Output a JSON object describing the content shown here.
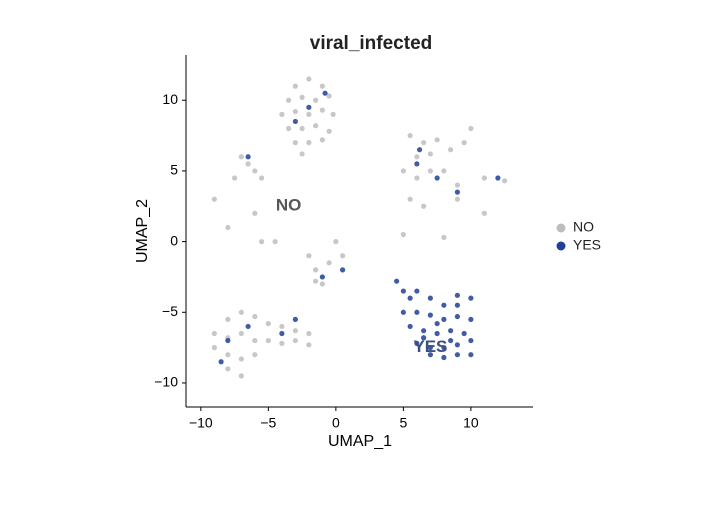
{
  "chart_data": {
    "type": "scatter",
    "title": "viral_infected",
    "x_label": "UMAP_1",
    "y_label": "UMAP_2",
    "xlim": [
      -11.1,
      14.6
    ],
    "ylim": [
      -11.7,
      13.2
    ],
    "xticks": [
      {
        "value": -10,
        "label": "−10"
      },
      {
        "value": -5,
        "label": "−5"
      },
      0,
      5,
      10
    ],
    "yticks": [
      {
        "value": -10,
        "label": "−10"
      },
      {
        "value": -5,
        "label": "−5"
      },
      0,
      5,
      10
    ],
    "legend": "right",
    "series": [
      {
        "name": "NO",
        "color": "#bdbdbd",
        "x": [
          -3,
          -2,
          -1,
          -3.5,
          -2.5,
          -1.5,
          -0.5,
          -4,
          -3,
          -2,
          -1,
          -0.2,
          -3.5,
          -2.5,
          -1.5,
          -0.5,
          -3,
          -2,
          -1,
          -2.5,
          -7,
          -6.5,
          -6,
          -5.5,
          -7.5,
          5.5,
          6.5,
          7.5,
          6,
          7,
          8.5,
          9.5,
          10,
          5,
          6,
          7,
          8,
          9,
          11,
          12.5,
          5.5,
          6.5,
          -8,
          -7,
          -6,
          -5,
          -4,
          -3,
          -2,
          -9,
          -8,
          -7,
          -6,
          -5,
          -4,
          -3,
          -2,
          -9,
          -8,
          -7,
          -6,
          -8,
          -7,
          -8,
          -5.5,
          -4.5,
          -2,
          -1.5,
          -1,
          0,
          0.5,
          -9,
          -6,
          8,
          9,
          11,
          5,
          -1.5,
          -0.5
        ],
        "y": [
          11,
          11.5,
          11,
          10,
          10.2,
          10,
          10.3,
          9,
          9.2,
          9,
          9.3,
          9,
          8,
          8,
          8.2,
          7.8,
          7,
          7,
          7.2,
          6.2,
          6,
          5.5,
          5,
          4.5,
          4.5,
          7.5,
          7,
          7.2,
          6,
          6.2,
          6.5,
          7,
          8,
          5,
          4.5,
          5,
          5,
          4,
          4.5,
          4.3,
          3,
          2.5,
          -5.5,
          -5,
          -5.3,
          -5.8,
          -6,
          -6.3,
          -6.5,
          -6.5,
          -6.8,
          -6.5,
          -7,
          -7,
          -7.2,
          -7,
          -7.3,
          -7.5,
          -8,
          -8.3,
          -8,
          -9,
          -9.5,
          1,
          0,
          0,
          -1,
          -2,
          -3,
          0,
          -1,
          3,
          2,
          0.3,
          3,
          2,
          0.5,
          -2.8,
          -1.5
        ]
      },
      {
        "name": "YES",
        "color": "#1f3f99",
        "x": [
          4.5,
          5,
          5.5,
          6,
          7,
          8,
          9,
          10,
          5,
          6,
          7,
          8,
          9,
          10,
          5.5,
          6.5,
          7.5,
          8.5,
          9.5,
          10,
          6,
          7,
          8,
          9,
          10,
          7,
          8,
          9,
          6.5,
          8.5,
          7.5,
          9,
          -2,
          -3,
          -0.8,
          -6.5,
          6.2,
          6,
          7.5,
          9,
          12,
          -8,
          -6.5,
          -4,
          -3,
          -8.5,
          -1,
          0.5
        ],
        "y": [
          -2.8,
          -3.5,
          -4,
          -3.5,
          -4,
          -4.5,
          -3.8,
          -4,
          -5,
          -5,
          -5.2,
          -5.5,
          -5.3,
          -5.5,
          -6,
          -6.3,
          -6.5,
          -6.3,
          -6.5,
          -7,
          -7.2,
          -7.5,
          -7.5,
          -7.3,
          -8,
          -8,
          -8.2,
          -8,
          -6.8,
          -7,
          -5.8,
          -4.5,
          9.5,
          8.5,
          10.5,
          6,
          6.5,
          5.5,
          4.5,
          3.5,
          4.5,
          -7,
          -6,
          -6.5,
          -5.5,
          -8.5,
          -2.5,
          -2
        ]
      }
    ],
    "annotations": [
      {
        "text": "NO",
        "x": -3.5,
        "y": 2.5,
        "color": "#555555"
      },
      {
        "text": "YES",
        "x": 7,
        "y": -7.5,
        "color": "#3a4f86"
      }
    ]
  }
}
